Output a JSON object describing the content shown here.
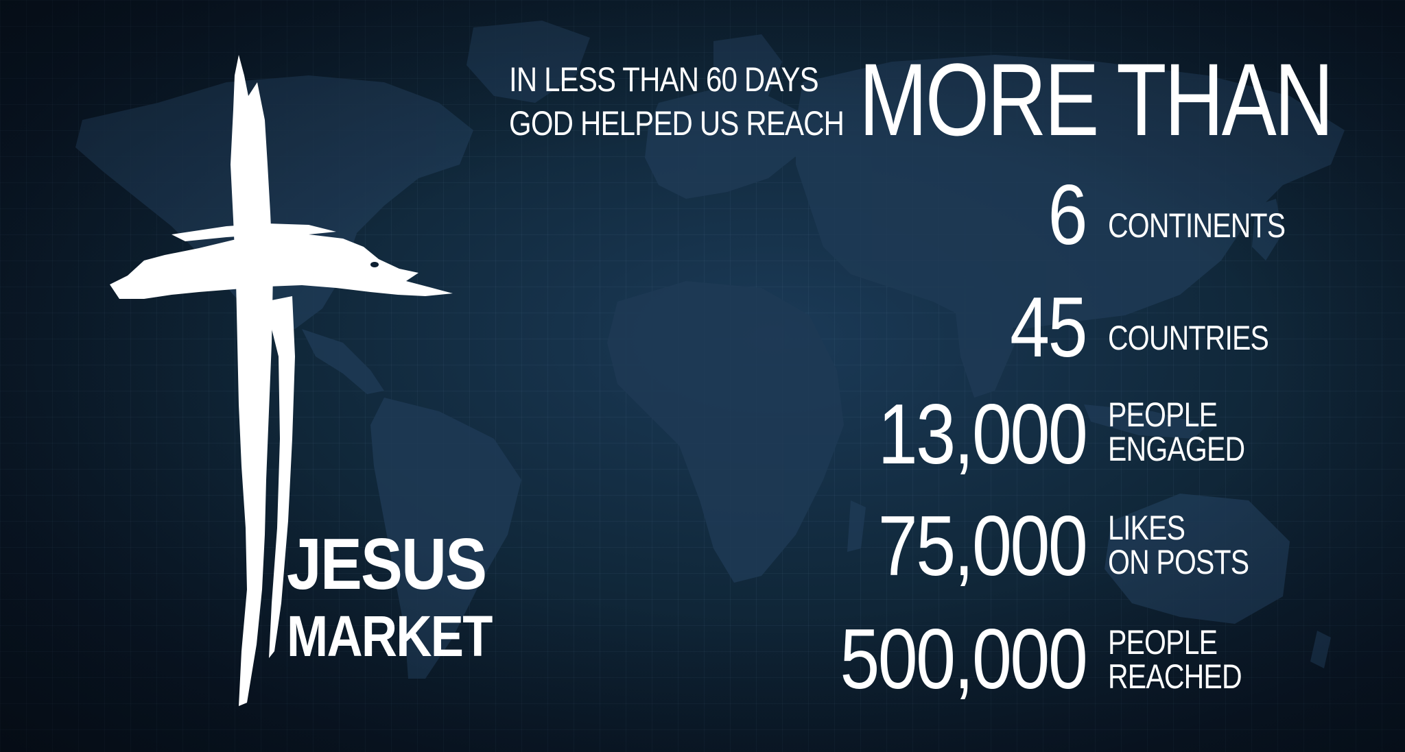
{
  "brand": {
    "line1": "JESUS",
    "line2": "MARKET"
  },
  "intro": {
    "line1": "IN LESS THAN 60 DAYS",
    "line2": "GOD HELPED US REACH"
  },
  "headline": "MORE THAN",
  "stats": [
    {
      "value": "6",
      "label_line1": "CONTINENTS",
      "label_line2": ""
    },
    {
      "value": "45",
      "label_line1": "COUNTRIES",
      "label_line2": ""
    },
    {
      "value": "13,000",
      "label_line1": "PEOPLE",
      "label_line2": "ENGAGED"
    },
    {
      "value": "75,000",
      "label_line1": "LIKES",
      "label_line2": "ON POSTS"
    },
    {
      "value": "500,000",
      "label_line1": "PEOPLE",
      "label_line2": "REACHED"
    }
  ],
  "icons": {
    "cross": "cross-icon",
    "background": "world-map"
  },
  "colors": {
    "background": "#0b1a2b",
    "map_land": "#1f3c57",
    "text": "#ffffff"
  }
}
